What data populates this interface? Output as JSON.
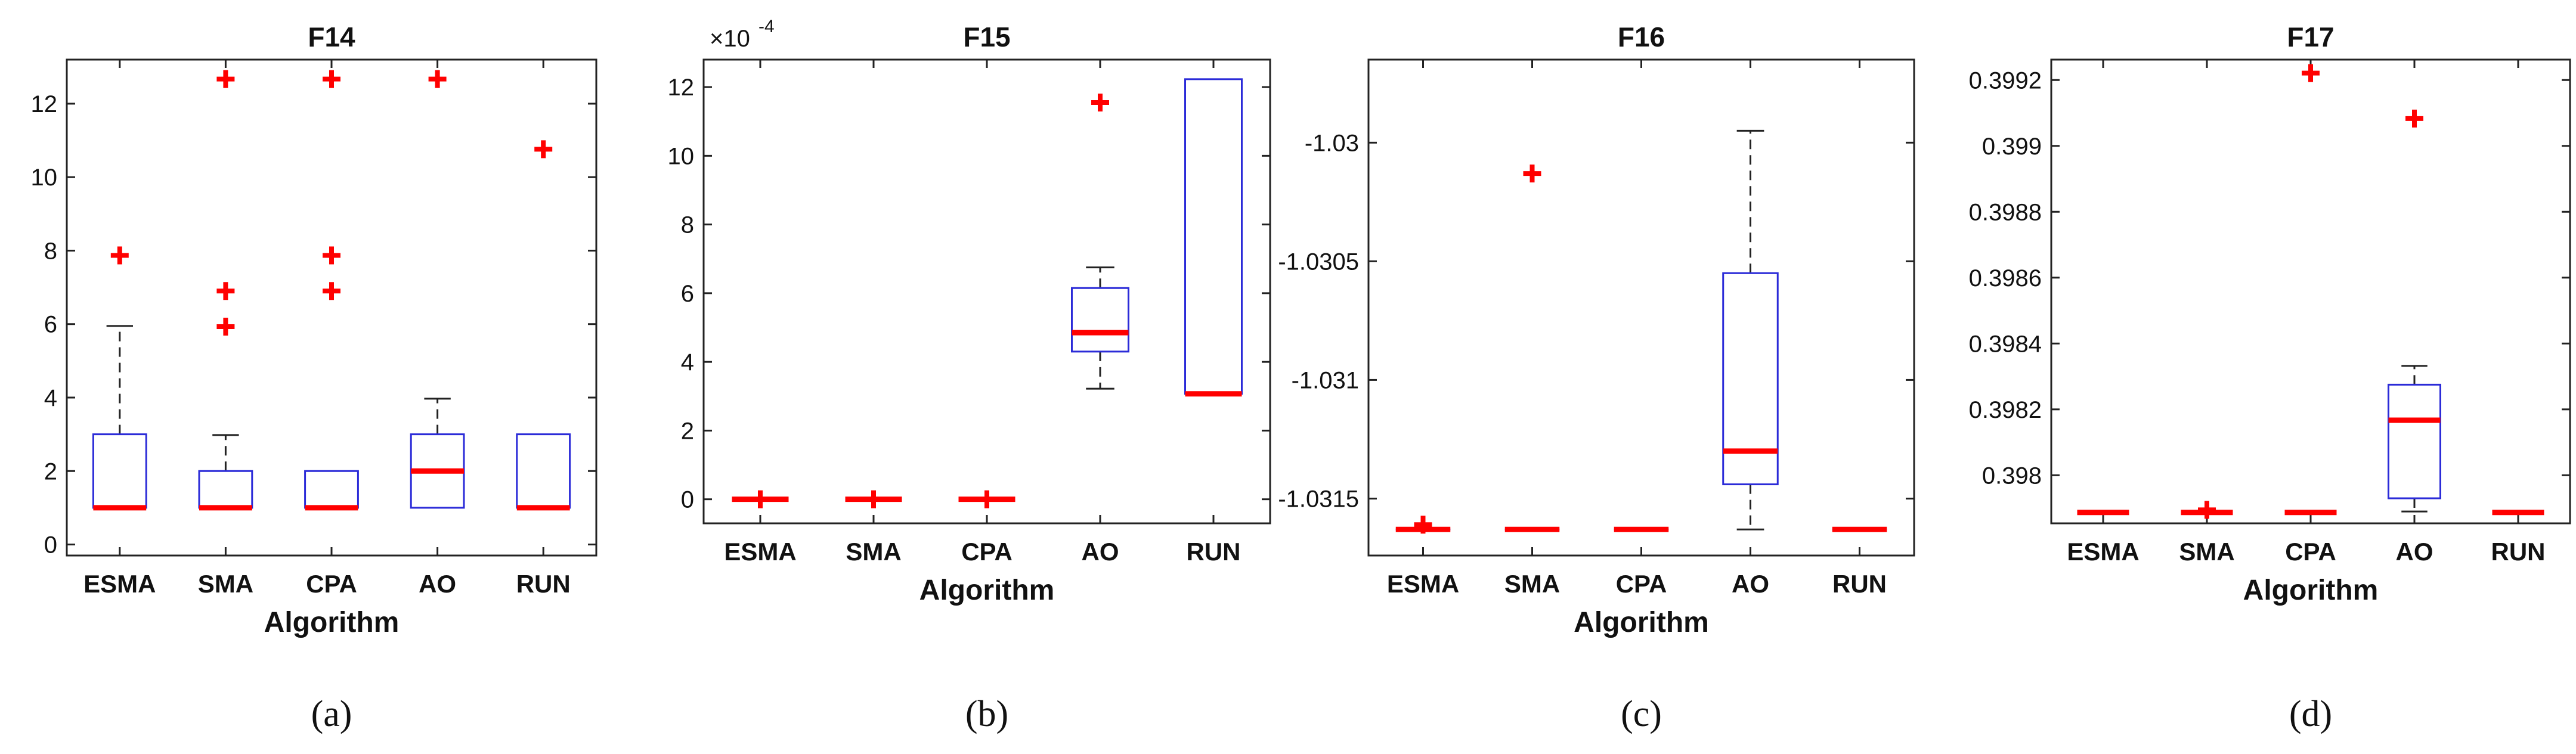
{
  "chart_data": [
    {
      "type": "box",
      "title": "F14",
      "xlabel": "Algorithm",
      "ylabel": "",
      "categories": [
        "ESMA",
        "SMA",
        "CPA",
        "AO",
        "RUN"
      ],
      "ylim": [
        -0.3,
        13.2
      ],
      "yticks": [
        0,
        2,
        4,
        6,
        8,
        10,
        12
      ],
      "ytick_labels": [
        "0",
        "2",
        "4",
        "6",
        "8",
        "10",
        "12"
      ],
      "exponent_label": "",
      "caption": "(a)",
      "boxes": [
        {
          "category": "ESMA",
          "q1": 1,
          "median": 1,
          "q3": 3,
          "whisker_low": 1,
          "whisker_high": 5.95,
          "outliers": [
            7.87
          ]
        },
        {
          "category": "SMA",
          "q1": 1,
          "median": 1,
          "q3": 2,
          "whisker_low": 1,
          "whisker_high": 2.98,
          "outliers": [
            5.93,
            6.9,
            12.67
          ]
        },
        {
          "category": "CPA",
          "q1": 1,
          "median": 1,
          "q3": 2,
          "whisker_low": 1,
          "whisker_high": 2,
          "outliers": [
            6.9,
            7.87,
            12.67
          ]
        },
        {
          "category": "AO",
          "q1": 1,
          "median": 2,
          "q3": 3,
          "whisker_low": 1,
          "whisker_high": 3.97,
          "outliers": [
            12.67
          ]
        },
        {
          "category": "RUN",
          "q1": 1,
          "median": 1,
          "q3": 3,
          "whisker_low": 1,
          "whisker_high": 3,
          "outliers": [
            10.76
          ]
        }
      ]
    },
    {
      "type": "box",
      "title": "F15",
      "xlabel": "Algorithm",
      "ylabel": "",
      "categories": [
        "ESMA",
        "SMA",
        "CPA",
        "AO",
        "RUN"
      ],
      "ylim": [
        -0.7,
        12.8
      ],
      "yticks": [
        0,
        2,
        4,
        6,
        8,
        10,
        12
      ],
      "ytick_labels": [
        "0",
        "2",
        "4",
        "6",
        "8",
        "10",
        "12"
      ],
      "exponent_label": "×10",
      "exponent_power": "-4",
      "caption": "(b)",
      "boxes": [
        {
          "category": "ESMA",
          "q1": 0,
          "median": 0,
          "q3": 0,
          "whisker_low": 0,
          "whisker_high": 0,
          "outliers": [
            0
          ]
        },
        {
          "category": "SMA",
          "q1": 0,
          "median": 0,
          "q3": 0,
          "whisker_low": 0,
          "whisker_high": 0,
          "outliers": [
            0
          ]
        },
        {
          "category": "CPA",
          "q1": 0,
          "median": 0,
          "q3": 0,
          "whisker_low": 0,
          "whisker_high": 0,
          "outliers": [
            0
          ]
        },
        {
          "category": "AO",
          "q1": 4.3,
          "median": 4.85,
          "q3": 6.15,
          "whisker_low": 3.22,
          "whisker_high": 6.75,
          "outliers": [
            11.55
          ]
        },
        {
          "category": "RUN",
          "q1": 3.07,
          "median": 3.07,
          "q3": 12.23,
          "whisker_low": 3.07,
          "whisker_high": 12.23,
          "outliers": []
        }
      ]
    },
    {
      "type": "box",
      "title": "F16",
      "xlabel": "Algorithm",
      "ylabel": "",
      "categories": [
        "ESMA",
        "SMA",
        "CPA",
        "AO",
        "RUN"
      ],
      "ylim": [
        -1.03174,
        -1.02965
      ],
      "yticks": [
        -1.0315,
        -1.031,
        -1.0305,
        -1.03
      ],
      "ytick_labels": [
        "-1.0315",
        "-1.031",
        "-1.0305",
        "-1.03"
      ],
      "exponent_label": "",
      "caption": "(c)",
      "boxes": [
        {
          "category": "ESMA",
          "q1": -1.03163,
          "median": -1.03163,
          "q3": -1.03163,
          "whisker_low": -1.03163,
          "whisker_high": -1.03163,
          "outliers": [
            -1.03161
          ]
        },
        {
          "category": "SMA",
          "q1": -1.03163,
          "median": -1.03163,
          "q3": -1.03163,
          "whisker_low": -1.03163,
          "whisker_high": -1.03163,
          "outliers": [
            -1.03013
          ]
        },
        {
          "category": "CPA",
          "q1": -1.03163,
          "median": -1.03163,
          "q3": -1.03163,
          "whisker_low": -1.03163,
          "whisker_high": -1.03163,
          "outliers": []
        },
        {
          "category": "AO",
          "q1": -1.03144,
          "median": -1.0313,
          "q3": -1.03055,
          "whisker_low": -1.03163,
          "whisker_high": -1.02995,
          "outliers": []
        },
        {
          "category": "RUN",
          "q1": -1.03163,
          "median": -1.03163,
          "q3": -1.03163,
          "whisker_low": -1.03163,
          "whisker_high": -1.03163,
          "outliers": []
        }
      ]
    },
    {
      "type": "box",
      "title": "F17",
      "xlabel": "Algorithm",
      "ylabel": "",
      "categories": [
        "ESMA",
        "SMA",
        "CPA",
        "AO",
        "RUN"
      ],
      "ylim": [
        0.397854,
        0.399262
      ],
      "yticks": [
        0.398,
        0.3982,
        0.3984,
        0.3986,
        0.3988,
        0.399,
        0.3992
      ],
      "ytick_labels": [
        "0.398",
        "0.3982",
        "0.3984",
        "0.3986",
        "0.3988",
        "0.399",
        "0.3992"
      ],
      "exponent_label": "",
      "caption": "(d)",
      "boxes": [
        {
          "category": "ESMA",
          "q1": 0.397887,
          "median": 0.397887,
          "q3": 0.397887,
          "whisker_low": 0.397887,
          "whisker_high": 0.397887,
          "outliers": []
        },
        {
          "category": "SMA",
          "q1": 0.397887,
          "median": 0.397887,
          "q3": 0.397887,
          "whisker_low": 0.397887,
          "whisker_high": 0.397887,
          "outliers": [
            0.397895
          ]
        },
        {
          "category": "CPA",
          "q1": 0.397887,
          "median": 0.397887,
          "q3": 0.397887,
          "whisker_low": 0.397887,
          "whisker_high": 0.397887,
          "outliers": [
            0.399221
          ]
        },
        {
          "category": "AO",
          "q1": 0.39793,
          "median": 0.398167,
          "q3": 0.398275,
          "whisker_low": 0.39789,
          "whisker_high": 0.398332,
          "outliers": [
            0.399083
          ]
        },
        {
          "category": "RUN",
          "q1": 0.397887,
          "median": 0.397887,
          "q3": 0.397887,
          "whisker_low": 0.397887,
          "whisker_high": 0.397887,
          "outliers": []
        }
      ]
    }
  ],
  "colors": {
    "box": "#2b2bd8",
    "median": "#ff0000",
    "outlier": "#ff0000",
    "whisker": "#222222",
    "axis": "#222222",
    "text": "#111111"
  }
}
